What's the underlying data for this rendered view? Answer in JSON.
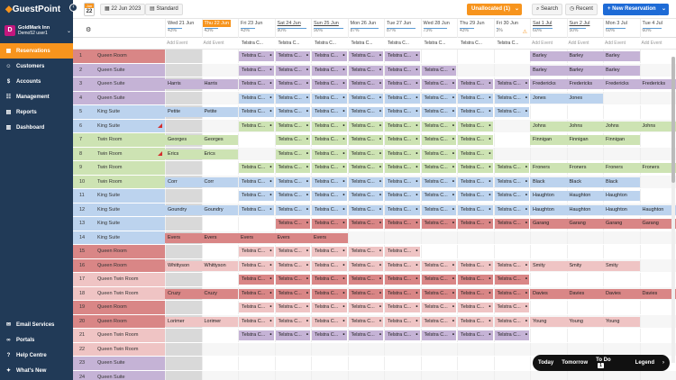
{
  "app": {
    "logo_text": "GuestPoint",
    "collapse_glyph": "‹"
  },
  "user": {
    "initial": "D",
    "name": "GoldMark Inn",
    "sub": "Demo52 user1"
  },
  "nav": {
    "items": [
      {
        "label": "Reservations",
        "icon": "calendar-icon",
        "glyph": "▦",
        "active": true
      },
      {
        "label": "Customers",
        "icon": "users-icon",
        "glyph": "☺",
        "active": false
      },
      {
        "label": "Accounts",
        "icon": "wallet-icon",
        "glyph": "$",
        "active": false
      },
      {
        "label": "Management",
        "icon": "people-icon",
        "glyph": "☷",
        "active": false
      },
      {
        "label": "Reports",
        "icon": "report-icon",
        "glyph": "▤",
        "active": false
      },
      {
        "label": "Dashboard",
        "icon": "chart-icon",
        "glyph": "▥",
        "active": false
      }
    ],
    "bottom_items": [
      {
        "label": "Email Services",
        "icon": "email-icon",
        "glyph": "✉"
      },
      {
        "label": "Portals",
        "icon": "link-icon",
        "glyph": "∞"
      },
      {
        "label": "Help Centre",
        "icon": "help-icon",
        "glyph": "?"
      },
      {
        "label": "What's New",
        "icon": "megaphone-icon",
        "glyph": "✦"
      }
    ]
  },
  "toolbar": {
    "cal_month": "Jun",
    "cal_day": "22",
    "date_label": "22 Jun 2023",
    "view_label": "Standard",
    "unallocated_label": "Unallocated (1)",
    "search_label": "Search",
    "recent_label": "Recent",
    "new_reservation_label": "+ New Reservation"
  },
  "gear_glyph": "⚙",
  "add_event_label": "Add Event",
  "event_label": "Telstra C...",
  "days": [
    {
      "label": "Wed 21 Jun",
      "pct": "43%",
      "today": false,
      "weekend": false
    },
    {
      "label": "Thu 22 Jun",
      "pct": "43%",
      "today": true,
      "weekend": false
    },
    {
      "label": "Fri 23 Jun",
      "pct": "43%",
      "today": false,
      "weekend": false
    },
    {
      "label": "Sat 24 Jun",
      "pct": "90%",
      "today": false,
      "weekend": true
    },
    {
      "label": "Sun 25 Jun",
      "pct": "90%",
      "today": false,
      "weekend": true
    },
    {
      "label": "Mon 26 Jun",
      "pct": "87%",
      "today": false,
      "weekend": false
    },
    {
      "label": "Tue 27 Jun",
      "pct": "87%",
      "today": false,
      "weekend": false
    },
    {
      "label": "Wed 28 Jun",
      "pct": "73%",
      "today": false,
      "weekend": false
    },
    {
      "label": "Thu 29 Jun",
      "pct": "43%",
      "today": false,
      "weekend": false
    },
    {
      "label": "Fri 30 Jun",
      "pct": "3%",
      "today": false,
      "weekend": false,
      "warn": true
    },
    {
      "label": "Sat 1 Jul",
      "pct": "60%",
      "today": false,
      "weekend": true
    },
    {
      "label": "Sun 2 Jul",
      "pct": "50%",
      "today": false,
      "weekend": true
    },
    {
      "label": "Mon 3 Jul",
      "pct": "60%",
      "today": false,
      "weekend": false
    },
    {
      "label": "Tue 4 Jul",
      "pct": "60%",
      "today": false,
      "weekend": false
    }
  ],
  "rooms": [
    {
      "num": "1",
      "name": "Queen Room",
      "color": "red"
    },
    {
      "num": "2",
      "name": "Queen Suite",
      "color": "purple"
    },
    {
      "num": "3",
      "name": "Queen Suite",
      "color": "purple"
    },
    {
      "num": "4",
      "name": "Queen Suite",
      "color": "purple"
    },
    {
      "num": "5",
      "name": "King Suite",
      "color": "blue"
    },
    {
      "num": "6",
      "name": "King Suite",
      "color": "blue",
      "flag": true
    },
    {
      "num": "7",
      "name": "Twin Room",
      "color": "green"
    },
    {
      "num": "8",
      "name": "Twin Room",
      "color": "green",
      "flag": true
    },
    {
      "num": "9",
      "name": "Twin Room",
      "color": "green"
    },
    {
      "num": "10",
      "name": "Twin Room",
      "color": "green"
    },
    {
      "num": "11",
      "name": "King Suite",
      "color": "blue"
    },
    {
      "num": "12",
      "name": "King Suite",
      "color": "blue"
    },
    {
      "num": "13",
      "name": "King Suite",
      "color": "blue"
    },
    {
      "num": "14",
      "name": "King Suite",
      "color": "blue"
    },
    {
      "num": "15",
      "name": "Queen Room",
      "color": "red"
    },
    {
      "num": "16",
      "name": "Queen Room",
      "color": "red"
    },
    {
      "num": "17",
      "name": "Queen Twin Room",
      "color": "pink"
    },
    {
      "num": "18",
      "name": "Queen Twin Room",
      "color": "pink"
    },
    {
      "num": "19",
      "name": "Queen Room",
      "color": "red"
    },
    {
      "num": "20",
      "name": "Queen Room",
      "color": "red"
    },
    {
      "num": "21",
      "name": "Queen Twin Room",
      "color": "pink"
    },
    {
      "num": "22",
      "name": "Queen Twin Room",
      "color": "pink"
    },
    {
      "num": "23",
      "name": "Queen Suite",
      "color": "purple"
    },
    {
      "num": "24",
      "name": "Queen Suite",
      "color": "purple"
    }
  ],
  "bookings": [
    {
      "row": 0,
      "start": 2,
      "len": 5,
      "label": "Telstra C...",
      "color": "purple",
      "dots": true
    },
    {
      "row": 0,
      "start": 10,
      "len": 3,
      "label": "Barley",
      "color": "purple"
    },
    {
      "row": 1,
      "start": 2,
      "len": 6,
      "label": "Telstra C...",
      "color": "purple",
      "dots": true
    },
    {
      "row": 1,
      "start": 10,
      "len": 3,
      "label": "Barley",
      "color": "purple"
    },
    {
      "row": 2,
      "start": 0,
      "len": 2,
      "label": "Harris",
      "color": "purple"
    },
    {
      "row": 2,
      "start": 2,
      "len": 8,
      "label": "Telstra C...",
      "color": "purple",
      "dots": true
    },
    {
      "row": 2,
      "start": 10,
      "len": 4,
      "label": "Fredericks",
      "color": "purple"
    },
    {
      "row": 3,
      "start": 2,
      "len": 8,
      "label": "Telstra C...",
      "color": "blue",
      "dots": true
    },
    {
      "row": 3,
      "start": 10,
      "len": 2,
      "label": "Jones",
      "color": "blue"
    },
    {
      "row": 4,
      "start": 0,
      "len": 2,
      "label": "Petite",
      "color": "blue"
    },
    {
      "row": 4,
      "start": 2,
      "len": 8,
      "label": "Telstra C...",
      "color": "blue",
      "dots": true
    },
    {
      "row": 5,
      "start": 2,
      "len": 7,
      "label": "Telstra C...",
      "color": "green",
      "dots": true
    },
    {
      "row": 5,
      "start": 10,
      "len": 4,
      "label": "Johns",
      "color": "green"
    },
    {
      "row": 6,
      "start": 0,
      "len": 2,
      "label": "Georges",
      "color": "green"
    },
    {
      "row": 6,
      "start": 3,
      "len": 6,
      "label": "Telstra C...",
      "color": "green",
      "dots": true
    },
    {
      "row": 6,
      "start": 10,
      "len": 3,
      "label": "Finnigan",
      "color": "green"
    },
    {
      "row": 7,
      "start": 0,
      "len": 2,
      "label": "Erics",
      "color": "green"
    },
    {
      "row": 7,
      "start": 3,
      "len": 6,
      "label": "Telstra C...",
      "color": "green",
      "dots": true
    },
    {
      "row": 8,
      "start": 2,
      "len": 8,
      "label": "Telstra C...",
      "color": "green",
      "dots": true
    },
    {
      "row": 8,
      "start": 10,
      "len": 4,
      "label": "Froners",
      "color": "green"
    },
    {
      "row": 9,
      "start": 0,
      "len": 2,
      "label": "Corr",
      "color": "blue"
    },
    {
      "row": 9,
      "start": 2,
      "len": 8,
      "label": "Telstra C...",
      "color": "blue",
      "dots": true
    },
    {
      "row": 9,
      "start": 10,
      "len": 3,
      "label": "Black",
      "color": "blue"
    },
    {
      "row": 10,
      "start": 2,
      "len": 8,
      "label": "Telstra C...",
      "color": "blue",
      "dots": true
    },
    {
      "row": 10,
      "start": 10,
      "len": 3,
      "label": "Haughton",
      "color": "blue"
    },
    {
      "row": 11,
      "start": 0,
      "len": 2,
      "label": "Goundry",
      "color": "blue"
    },
    {
      "row": 11,
      "start": 2,
      "len": 8,
      "label": "Telstra C...",
      "color": "blue",
      "dots": true
    },
    {
      "row": 11,
      "start": 10,
      "len": 4,
      "label": "Haughton",
      "color": "blue"
    },
    {
      "row": 12,
      "start": 3,
      "len": 7,
      "label": "Telstra C...",
      "color": "red",
      "dots": true
    },
    {
      "row": 12,
      "start": 10,
      "len": 4,
      "label": "Garang",
      "color": "red"
    },
    {
      "row": 13,
      "start": 0,
      "len": 5,
      "label": "Evers",
      "color": "red"
    },
    {
      "row": 14,
      "start": 2,
      "len": 5,
      "label": "Telstra C...",
      "color": "pink",
      "dots": true
    },
    {
      "row": 15,
      "start": 0,
      "len": 2,
      "label": "Whittyson",
      "color": "pink"
    },
    {
      "row": 15,
      "start": 2,
      "len": 8,
      "label": "Telstra C...",
      "color": "pink",
      "dots": true
    },
    {
      "row": 15,
      "start": 10,
      "len": 3,
      "label": "Smity",
      "color": "pink"
    },
    {
      "row": 16,
      "start": 2,
      "len": 8,
      "label": "Telstra C...",
      "color": "red",
      "dots": true
    },
    {
      "row": 17,
      "start": 0,
      "len": 2,
      "label": "Cruzy",
      "color": "red"
    },
    {
      "row": 17,
      "start": 2,
      "len": 8,
      "label": "Telstra C...",
      "color": "red",
      "dots": true
    },
    {
      "row": 17,
      "start": 10,
      "len": 4,
      "label": "Davies",
      "color": "red"
    },
    {
      "row": 18,
      "start": 2,
      "len": 8,
      "label": "Telstra C...",
      "color": "pink",
      "dots": true
    },
    {
      "row": 19,
      "start": 0,
      "len": 2,
      "label": "Lorimer",
      "color": "pink"
    },
    {
      "row": 19,
      "start": 2,
      "len": 8,
      "label": "Telstra C...",
      "color": "pink",
      "dots": true
    },
    {
      "row": 19,
      "start": 10,
      "len": 3,
      "label": "Young",
      "color": "pink"
    },
    {
      "row": 20,
      "start": 2,
      "len": 8,
      "label": "Telstra C...",
      "color": "purple",
      "dots": true
    }
  ],
  "bottom_bar": {
    "today": "Today",
    "tomorrow": "Tomorrow",
    "todo": "To Do",
    "todo_count": "1",
    "legend": "Legend",
    "next": "›"
  }
}
